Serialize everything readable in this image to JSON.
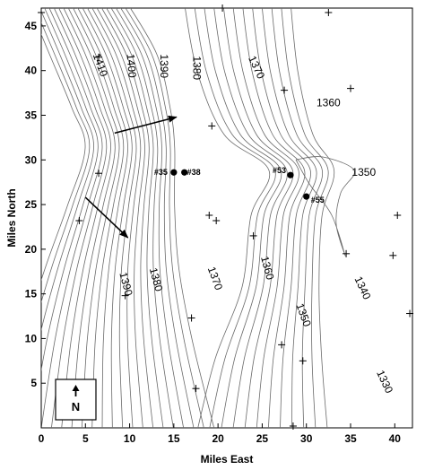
{
  "map": {
    "type": "contour_map",
    "xlabel": "Miles East",
    "ylabel": "Miles North",
    "xlim": [
      0,
      42
    ],
    "ylim": [
      0,
      47
    ],
    "x_ticks": [
      0,
      5,
      10,
      15,
      20,
      25,
      30,
      35,
      40
    ],
    "y_ticks": [
      5,
      10,
      15,
      20,
      25,
      30,
      35,
      40,
      45
    ],
    "north_arrow_label": "N",
    "contour_labels": [
      {
        "text": "1410",
        "x": 6.3,
        "y": 40.5,
        "angle": 70
      },
      {
        "text": "1400",
        "x": 9.8,
        "y": 40.5,
        "angle": 85
      },
      {
        "text": "1390",
        "x": 13.5,
        "y": 40.5,
        "angle": 90
      },
      {
        "text": "1380",
        "x": 17.2,
        "y": 40.3,
        "angle": 90
      },
      {
        "text": "1370",
        "x": 24.0,
        "y": 40.2,
        "angle": 65
      },
      {
        "text": "1360",
        "x": 32.5,
        "y": 36.0,
        "angle": 0
      },
      {
        "text": "1350",
        "x": 36.5,
        "y": 28.2,
        "angle": 0
      },
      {
        "text": "1390",
        "x": 9.2,
        "y": 16.0,
        "angle": 75
      },
      {
        "text": "1380",
        "x": 12.6,
        "y": 16.5,
        "angle": 75
      },
      {
        "text": "1370",
        "x": 19.3,
        "y": 16.6,
        "angle": 70
      },
      {
        "text": "1360",
        "x": 25.2,
        "y": 17.8,
        "angle": 75
      },
      {
        "text": "1350",
        "x": 29.3,
        "y": 12.5,
        "angle": 70
      },
      {
        "text": "1340",
        "x": 36.0,
        "y": 15.5,
        "angle": 65
      },
      {
        "text": "1330",
        "x": 38.5,
        "y": 5.0,
        "angle": 65
      }
    ],
    "wells": [
      {
        "label": "#35",
        "x": 15.0,
        "y": 28.6
      },
      {
        "label": "#38",
        "x": 16.2,
        "y": 28.6
      },
      {
        "label": "#53",
        "x": 28.2,
        "y": 28.3
      },
      {
        "label": "#55",
        "x": 30.0,
        "y": 25.9
      }
    ],
    "stations": [
      [
        0,
        46.5
      ],
      [
        20.5,
        47
      ],
      [
        32.5,
        46.5
      ],
      [
        6.5,
        41.5
      ],
      [
        27.5,
        37.8
      ],
      [
        35,
        38
      ],
      [
        19.3,
        33.8
      ],
      [
        6.5,
        28.5
      ],
      [
        4.3,
        23.2
      ],
      [
        19.0,
        23.8
      ],
      [
        19.8,
        23.2
      ],
      [
        24,
        21.5
      ],
      [
        40.3,
        23.8
      ],
      [
        34.5,
        19.5
      ],
      [
        39.8,
        19.3
      ],
      [
        9.5,
        14.8
      ],
      [
        17,
        12.3
      ],
      [
        41.7,
        12.8
      ],
      [
        27.2,
        9.3
      ],
      [
        29.6,
        7.5
      ],
      [
        17.5,
        4.4
      ],
      [
        28.5,
        0.2
      ]
    ],
    "flow_arrows": [
      {
        "from": [
          8.3,
          33.0
        ],
        "to": [
          15.3,
          34.8
        ]
      },
      {
        "from": [
          5.0,
          25.8
        ],
        "to": [
          9.8,
          21.3
        ]
      }
    ]
  }
}
